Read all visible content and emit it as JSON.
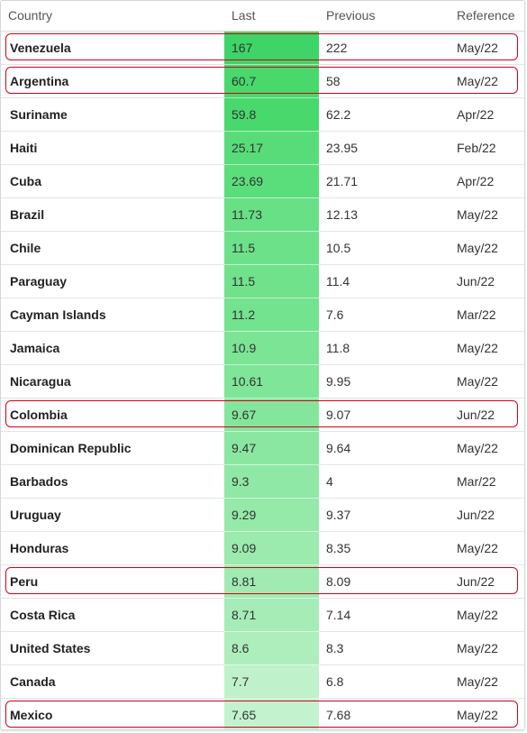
{
  "table": {
    "headers": {
      "country": "Country",
      "last": "Last",
      "previous": "Previous",
      "reference": "Reference"
    },
    "rows": [
      {
        "country": "Venezuela",
        "last": "167",
        "previous": "222",
        "reference": "May/22",
        "highlighted": true,
        "color": "#3fd467"
      },
      {
        "country": "Argentina",
        "last": "60.7",
        "previous": "58",
        "reference": "May/22",
        "highlighted": true,
        "color": "#48d86c"
      },
      {
        "country": "Suriname",
        "last": "59.8",
        "previous": "62.2",
        "reference": "Apr/22",
        "highlighted": false,
        "color": "#48d86c"
      },
      {
        "country": "Haiti",
        "last": "25.17",
        "previous": "23.95",
        "reference": "Feb/22",
        "highlighted": false,
        "color": "#57dc79"
      },
      {
        "country": "Cuba",
        "last": "23.69",
        "previous": "21.71",
        "reference": "Apr/22",
        "highlighted": false,
        "color": "#5ade7b"
      },
      {
        "country": "Brazil",
        "last": "11.73",
        "previous": "12.13",
        "reference": "May/22",
        "highlighted": false,
        "color": "#68e085"
      },
      {
        "country": "Chile",
        "last": "11.5",
        "previous": "10.5",
        "reference": "May/22",
        "highlighted": false,
        "color": "#6de189"
      },
      {
        "country": "Paraguay",
        "last": "11.5",
        "previous": "11.4",
        "reference": "Jun/22",
        "highlighted": false,
        "color": "#70e28c"
      },
      {
        "country": "Cayman Islands",
        "last": "11.2",
        "previous": "7.6",
        "reference": "Mar/22",
        "highlighted": false,
        "color": "#73e38f"
      },
      {
        "country": "Jamaica",
        "last": "10.9",
        "previous": "11.8",
        "reference": "May/22",
        "highlighted": false,
        "color": "#7be495"
      },
      {
        "country": "Nicaragua",
        "last": "10.61",
        "previous": "9.95",
        "reference": "May/22",
        "highlighted": false,
        "color": "#7fe598"
      },
      {
        "country": "Colombia",
        "last": "9.67",
        "previous": "9.07",
        "reference": "Jun/22",
        "highlighted": true,
        "color": "#84e69c"
      },
      {
        "country": "Dominican Republic",
        "last": "9.47",
        "previous": "9.64",
        "reference": "May/22",
        "highlighted": false,
        "color": "#8ae7a1"
      },
      {
        "country": "Barbados",
        "last": "9.3",
        "previous": "4",
        "reference": "Mar/22",
        "highlighted": false,
        "color": "#8fe8a5"
      },
      {
        "country": "Uruguay",
        "last": "9.29",
        "previous": "9.37",
        "reference": "Jun/22",
        "highlighted": false,
        "color": "#95e9a9"
      },
      {
        "country": "Honduras",
        "last": "9.09",
        "previous": "8.35",
        "reference": "May/22",
        "highlighted": false,
        "color": "#9beaae"
      },
      {
        "country": "Peru",
        "last": "8.81",
        "previous": "8.09",
        "reference": "Jun/22",
        "highlighted": true,
        "color": "#a1ebb3"
      },
      {
        "country": "Costa Rica",
        "last": "8.71",
        "previous": "7.14",
        "reference": "May/22",
        "highlighted": false,
        "color": "#a6ecb7"
      },
      {
        "country": "United States",
        "last": "8.6",
        "previous": "8.3",
        "reference": "May/22",
        "highlighted": false,
        "color": "#adeebc"
      },
      {
        "country": "Canada",
        "last": "7.7",
        "previous": "6.8",
        "reference": "May/22",
        "highlighted": false,
        "color": "#bff2cb"
      },
      {
        "country": "Mexico",
        "last": "7.65",
        "previous": "7.68",
        "reference": "May/22",
        "highlighted": true,
        "color": "#c3f3ce"
      }
    ],
    "highlight_color": "#d0021b"
  }
}
